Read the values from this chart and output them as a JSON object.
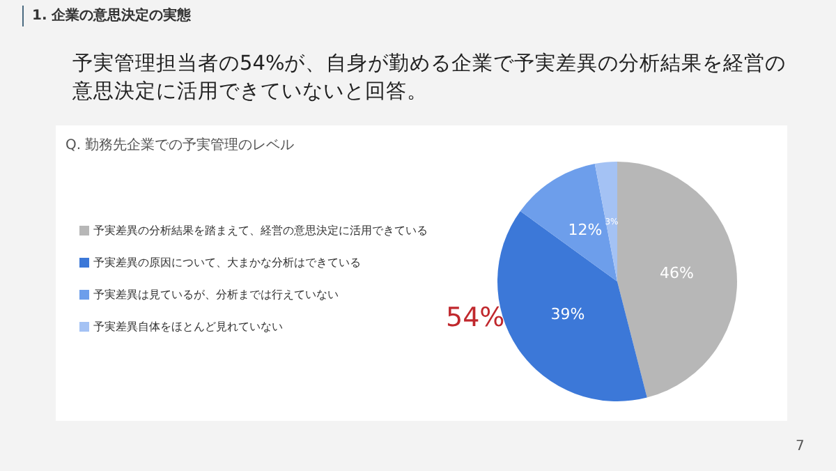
{
  "chart_data": {
    "type": "pie",
    "title": "予実管理担当者の54%が、自身が勤める企業で予実差異の分析結果を経営の意思決定に活用できていないと回答。",
    "subtitle": "Q. 勤務先企業での予実管理のレベル",
    "categories": [
      "予実差異の分析結果を踏まえて、経営の意思決定に活用できている",
      "予実差異の原因について、大まかな分析はできている",
      "予実差異は見ているが、分析までは行えていない",
      "予実差異自体をほとんど見れていない"
    ],
    "values": [
      46,
      39,
      12,
      3
    ],
    "colors": [
      "#b7b7b7",
      "#3c78d8",
      "#6d9eeb",
      "#a4c2f4"
    ],
    "value_labels": [
      "46%",
      "39%",
      "12%",
      "3%"
    ],
    "legend": "left",
    "annotations": [
      "1. 企業の意思決定の実態",
      "54%",
      "7"
    ]
  }
}
